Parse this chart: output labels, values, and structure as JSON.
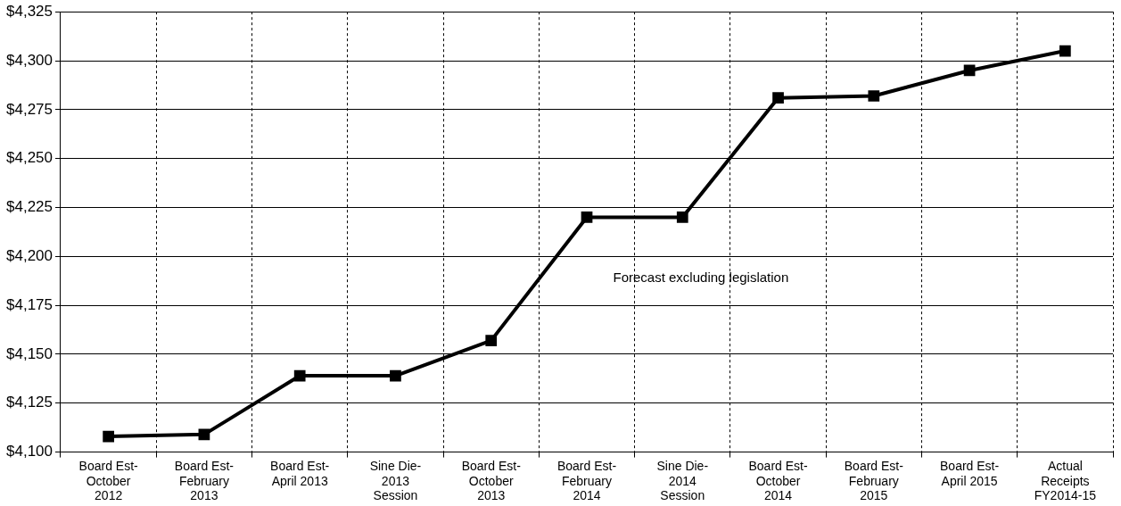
{
  "chart_data": {
    "type": "line",
    "categories": [
      "Board Est-\nOctober\n2012",
      "Board Est-\nFebruary\n2013",
      "Board Est-\nApril 2013",
      "Sine Die-\n2013\nSession",
      "Board Est-\nOctober\n2013",
      "Board Est-\nFebruary\n2014",
      "Sine Die-\n2014\nSession",
      "Board Est-\nOctober\n2014",
      "Board Est-\nFebruary\n2015",
      "Board Est-\nApril 2015",
      "Actual\nReceipts\nFY2014-15"
    ],
    "series": [
      {
        "color": "#000000",
        "values": [
          4108,
          4109,
          4139,
          4139,
          4157,
          4220,
          4220,
          4281,
          4282,
          4295,
          4305
        ]
      }
    ],
    "ylim": [
      4100,
      4325
    ],
    "yticks": [
      {
        "value": 4100,
        "label": "$4,100"
      },
      {
        "value": 4125,
        "label": "$4,125"
      },
      {
        "value": 4150,
        "label": "$4,150"
      },
      {
        "value": 4175,
        "label": "$4,175"
      },
      {
        "value": 4200,
        "label": "$4,200"
      },
      {
        "value": 4225,
        "label": "$4,225"
      },
      {
        "value": 4250,
        "label": "$4,250"
      },
      {
        "value": 4275,
        "label": "$4,275"
      },
      {
        "value": 4300,
        "label": "$4,300"
      },
      {
        "value": 4325,
        "label": "$4,325"
      }
    ],
    "grid": true,
    "legend": false,
    "marker": "square",
    "line_style": "solid",
    "annotations": [
      "Forecast excluding legislation"
    ]
  }
}
